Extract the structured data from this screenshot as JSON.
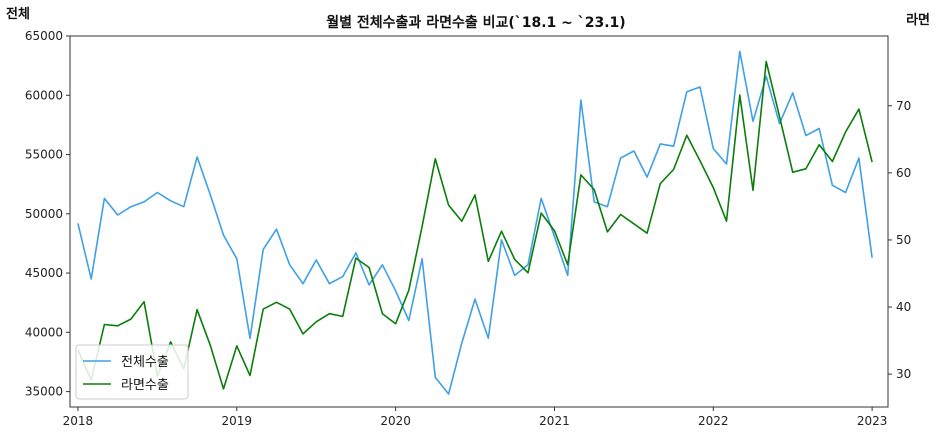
{
  "chart_data": {
    "type": "line",
    "title": "월별 전체수출과 라면수출 비교(`18.1 ~ `23.1)",
    "ylabel_left": "전체",
    "ylabel_right": "라면",
    "xlim": [
      2017.95,
      2023.1
    ],
    "ylim_left": [
      33700,
      65000
    ],
    "ylim_right": [
      25.1,
      80.4
    ],
    "x_ticks": [
      2018,
      2019,
      2020,
      2021,
      2022,
      2023
    ],
    "y_ticks_left": [
      35000,
      40000,
      45000,
      50000,
      55000,
      60000,
      65000
    ],
    "y_ticks_right": [
      30,
      40,
      50,
      60,
      70
    ],
    "grid": false,
    "legend_position": "lower left",
    "series": [
      {
        "name": "전체수출",
        "axis": "left",
        "color": "#3fa0e6",
        "values": [
          49200,
          44500,
          51300,
          49900,
          50600,
          51000,
          51800,
          51100,
          50600,
          54800,
          51600,
          48200,
          46200,
          39500,
          47000,
          48700,
          45700,
          44100,
          46100,
          44100,
          44700,
          46700,
          44000,
          45700,
          43500,
          41000,
          46200,
          36200,
          34800,
          39100,
          42800,
          39500,
          47800,
          44800,
          45700,
          51300,
          48100,
          44800,
          59600,
          51000,
          50600,
          54700,
          55300,
          53100,
          55900,
          55700,
          60300,
          60700,
          55500,
          54200,
          63700,
          57800,
          61600,
          57600,
          60200,
          56600,
          57200,
          52400,
          51800,
          54700,
          46300
        ]
      },
      {
        "name": "라면수출",
        "axis": "right",
        "color": "#0b7d0b",
        "values": [
          33.6,
          29.1,
          37.4,
          37.2,
          38.2,
          40.8,
          29.7,
          34.8,
          30.8,
          39.6,
          34.3,
          27.8,
          34.2,
          29.8,
          39.7,
          40.7,
          39.7,
          36.0,
          37.8,
          39.0,
          38.6,
          47.3,
          45.9,
          39.0,
          37.5,
          42.5,
          52.0,
          62.1,
          55.2,
          52.8,
          56.7,
          46.8,
          51.3,
          47.1,
          45.1,
          54.0,
          51.4,
          46.3,
          59.7,
          57.5,
          51.2,
          53.8,
          52.4,
          51.0,
          58.4,
          60.5,
          65.6,
          61.8,
          57.8,
          52.8,
          71.6,
          57.4,
          76.6,
          68.4,
          60.1,
          60.6,
          64.2,
          61.7,
          66.1,
          69.5,
          61.6
        ]
      }
    ]
  }
}
